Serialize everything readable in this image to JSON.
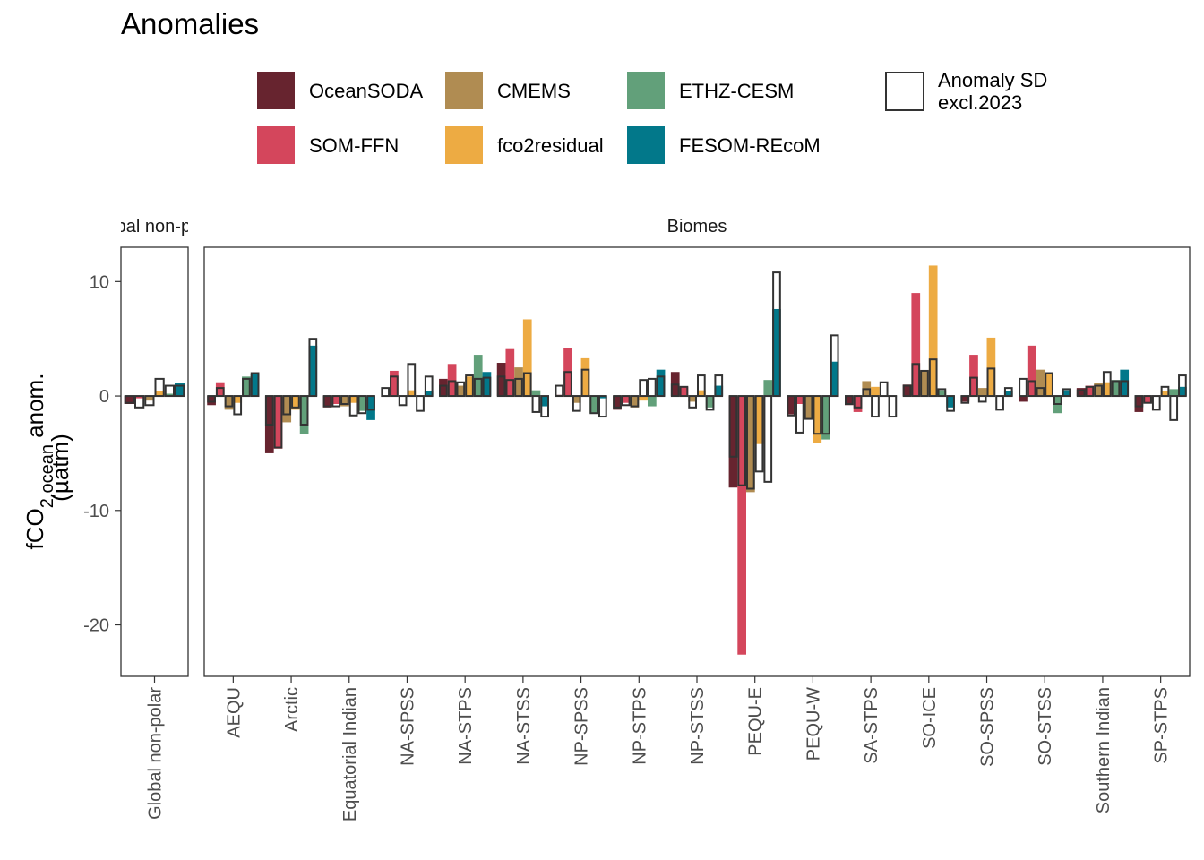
{
  "title": "Anomalies",
  "legend": {
    "items": [
      {
        "name": "OceanSODA",
        "color": "#67242f"
      },
      {
        "name": "SOM-FFN",
        "color": "#d4465c"
      },
      {
        "name": "CMEMS",
        "color": "#b08c52"
      },
      {
        "name": "fco2residual",
        "color": "#edab43"
      },
      {
        "name": "ETHZ-CESM",
        "color": "#62a07a"
      },
      {
        "name": "FESOM-REcoM",
        "color": "#02788a"
      }
    ],
    "sd_label_line1": "Anomaly SD",
    "sd_label_line2": "excl.2023"
  },
  "chart_data": {
    "type": "bar",
    "ylabel_main": "fCO",
    "ylabel_sub": "2,ocean",
    "ylabel_suffix": " anom.",
    "ylabel_unit": "(µatm)",
    "ylim": [
      -24.5,
      13
    ],
    "yticks": [
      10,
      0,
      -10,
      -20
    ],
    "grid": false,
    "legend_position": "top",
    "series_names": [
      "OceanSODA",
      "SOM-FFN",
      "CMEMS",
      "fco2residual",
      "ETHZ-CESM",
      "FESOM-REcoM"
    ],
    "panels": [
      {
        "strip": "Global non-polar",
        "categories": [
          "Global non-polar"
        ],
        "values": [
          [
            -0.7,
            -0.2,
            -0.4,
            0.4,
            0.2,
            1.1
          ]
        ],
        "sd": [
          [
            -0.6,
            -1.0,
            -0.8,
            1.5,
            0.9,
            0.9
          ]
        ]
      },
      {
        "strip": "Biomes",
        "categories": [
          "AEQU",
          "Arctic",
          "Equatorial Indian",
          "NA-SPSS",
          "NA-STPS",
          "NA-STSS",
          "NP-SPSS",
          "NP-STPS",
          "NP-STSS",
          "PEQU-E",
          "PEQU-W",
          "SA-STPS",
          "SO-ICE",
          "SO-SPSS",
          "SO-STSS",
          "Southern Indian",
          "SP-STPS"
        ],
        "values": [
          [
            -0.8,
            1.2,
            -1.2,
            -0.6,
            1.7,
            1.9
          ],
          [
            -5.0,
            -4.6,
            -2.3,
            -1.2,
            -3.3,
            4.4
          ],
          [
            -1.0,
            -0.7,
            -0.9,
            -0.6,
            -1.3,
            -2.1
          ],
          [
            0.0,
            2.2,
            0.0,
            0.5,
            0.0,
            0.4
          ],
          [
            1.5,
            2.8,
            0.9,
            1.7,
            3.6,
            2.1
          ],
          [
            2.9,
            4.1,
            2.5,
            6.7,
            0.5,
            -0.9
          ],
          [
            0.1,
            4.2,
            -0.6,
            3.3,
            -1.5,
            -0.2
          ],
          [
            -1.2,
            -0.6,
            -1.0,
            -0.4,
            -0.9,
            2.3
          ],
          [
            2.1,
            0.8,
            -0.5,
            0.5,
            -1.0,
            0.9
          ],
          [
            -8.0,
            -22.6,
            -8.4,
            -4.2,
            1.4,
            7.6
          ],
          [
            -1.6,
            -0.7,
            -2.0,
            -4.1,
            -3.8,
            3.0
          ],
          [
            -0.8,
            -1.4,
            1.3,
            0.8,
            0.0,
            0.0
          ],
          [
            1.0,
            9.0,
            2.2,
            11.4,
            0.5,
            -1.0
          ],
          [
            -0.5,
            3.6,
            0.7,
            5.1,
            0.0,
            0.4
          ],
          [
            -0.5,
            4.4,
            2.3,
            2.0,
            -1.5,
            0.5
          ],
          [
            0.7,
            0.9,
            1.1,
            1.2,
            1.4,
            2.3
          ],
          [
            -1.4,
            -0.6,
            0.0,
            0.4,
            0.6,
            0.8
          ]
        ],
        "sd": [
          [
            -0.5,
            0.7,
            -0.9,
            -1.6,
            1.5,
            2.0
          ],
          [
            -2.5,
            -4.5,
            -1.6,
            -1.0,
            -2.5,
            5.0
          ],
          [
            -0.9,
            -0.9,
            -0.7,
            -1.7,
            -1.5,
            -1.2
          ],
          [
            0.7,
            1.7,
            -0.8,
            2.8,
            -1.3,
            1.7
          ],
          [
            0.9,
            1.3,
            1.2,
            1.8,
            1.5,
            1.6
          ],
          [
            1.7,
            1.4,
            1.5,
            2.0,
            -1.4,
            -1.8
          ],
          [
            0.9,
            2.1,
            -1.3,
            2.3,
            -1.5,
            -1.8
          ],
          [
            -1.0,
            -0.8,
            -0.9,
            1.4,
            1.5,
            1.7
          ],
          [
            1.0,
            0.8,
            -1.0,
            1.8,
            -1.2,
            1.8
          ],
          [
            -5.3,
            -7.8,
            -8.1,
            -6.6,
            -7.5,
            10.8
          ],
          [
            -1.7,
            -3.2,
            -2.0,
            -3.3,
            -3.3,
            5.3
          ],
          [
            -0.7,
            -1.0,
            0.6,
            -1.8,
            1.2,
            -1.8
          ],
          [
            0.9,
            2.8,
            2.2,
            3.2,
            0.6,
            -1.3
          ],
          [
            -0.6,
            1.6,
            -0.5,
            2.4,
            -1.2,
            0.7
          ],
          [
            1.5,
            1.3,
            0.7,
            2.0,
            -0.7,
            0.6
          ],
          [
            0.5,
            0.8,
            0.9,
            2.1,
            1.3,
            1.3
          ],
          [
            -0.9,
            -0.6,
            -1.2,
            0.8,
            -2.1,
            1.8
          ]
        ]
      }
    ]
  }
}
